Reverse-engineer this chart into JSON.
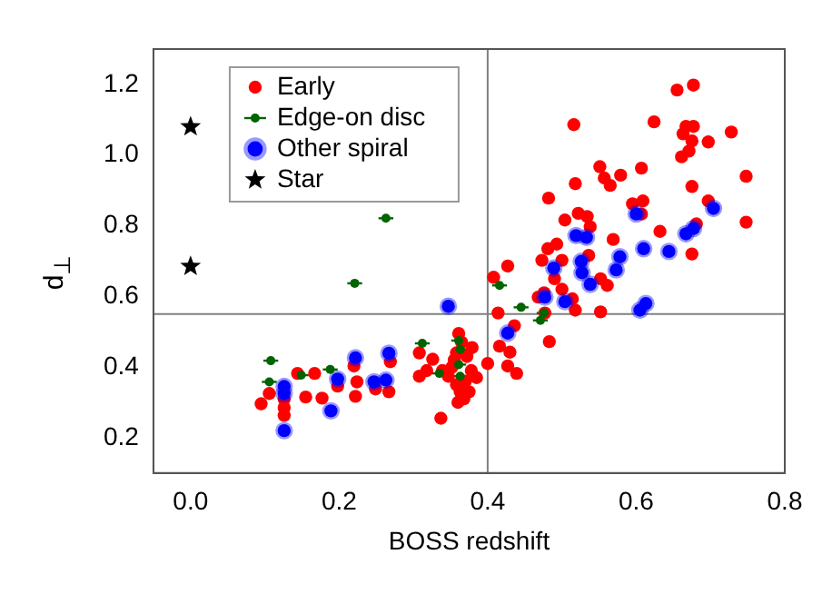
{
  "chart_data": {
    "type": "scatter",
    "xlabel": "BOSS redshift",
    "ylabel": "d$_{⊥}$",
    "xlim": [
      -0.05,
      0.8
    ],
    "ylim": [
      0.1,
      1.3
    ],
    "xticks": [
      {
        "value": 0,
        "label": "0.0"
      },
      0.2,
      0.4,
      0.6,
      0.8
    ],
    "yticks": [
      0.2,
      0.4,
      0.6,
      0.8,
      {
        "value": 1,
        "label": "1.0"
      },
      1.2
    ],
    "legend": "top left",
    "grid": false,
    "ref_lines": [
      {
        "axis": "x",
        "value": 0.4,
        "color": "#808080"
      },
      {
        "axis": "y",
        "value": 0.55,
        "color": "#808080"
      }
    ],
    "series": [
      {
        "name": "Early",
        "color": "#ff0000",
        "marker": "circle",
        "x": [
          0.095,
          0.106,
          0.126,
          0.126,
          0.126,
          0.144,
          0.155,
          0.167,
          0.177,
          0.198,
          0.22,
          0.224,
          0.222,
          0.249,
          0.267,
          0.269,
          0.308,
          0.308,
          0.318,
          0.326,
          0.337,
          0.339,
          0.347,
          0.355,
          0.36,
          0.363,
          0.37,
          0.352,
          0.358,
          0.365,
          0.372,
          0.378,
          0.385,
          0.358,
          0.368,
          0.375,
          0.361,
          0.379,
          0.4,
          0.408,
          0.427,
          0.414,
          0.416,
          0.43,
          0.427,
          0.439,
          0.436,
          0.483,
          0.473,
          0.481,
          0.476,
          0.468,
          0.482,
          0.493,
          0.5,
          0.504,
          0.518,
          0.516,
          0.522,
          0.534,
          0.538,
          0.536,
          0.551,
          0.557,
          0.565,
          0.579,
          0.569,
          0.561,
          0.552,
          0.552,
          0.518,
          0.514,
          0.607,
          0.609,
          0.595,
          0.624,
          0.632,
          0.655,
          0.677,
          0.667,
          0.677,
          0.663,
          0.675,
          0.661,
          0.671,
          0.697,
          0.728,
          0.748,
          0.748,
          0.697,
          0.675,
          0.681,
          0.675,
          0.607,
          0.477,
          0.49,
          0.5
        ],
        "values": [
          0.296,
          0.325,
          0.309,
          0.285,
          0.263,
          0.382,
          0.315,
          0.382,
          0.312,
          0.346,
          0.403,
          0.358,
          0.317,
          0.338,
          0.33,
          0.415,
          0.44,
          0.374,
          0.39,
          0.422,
          0.255,
          0.39,
          0.374,
          0.42,
          0.3,
          0.33,
          0.36,
          0.4,
          0.44,
          0.47,
          0.43,
          0.39,
          0.37,
          0.35,
          0.31,
          0.33,
          0.495,
          0.455,
          0.41,
          0.654,
          0.686,
          0.553,
          0.459,
          0.442,
          0.403,
          0.382,
          0.517,
          0.472,
          0.702,
          0.735,
          0.61,
          0.598,
          0.878,
          0.748,
          0.702,
          0.816,
          0.919,
          1.086,
          0.835,
          0.826,
          0.797,
          0.716,
          0.967,
          0.935,
          0.914,
          0.943,
          0.761,
          0.631,
          0.556,
          0.65,
          0.561,
          0.593,
          0.963,
          0.87,
          0.862,
          1.094,
          0.784,
          1.184,
          1.198,
          1.081,
          1.081,
          1.06,
          1.04,
          0.995,
          1.011,
          1.037,
          1.065,
          0.94,
          0.81,
          0.87,
          0.911,
          0.805,
          0.72,
          0.833,
          0.553,
          0.65,
          0.62
        ]
      },
      {
        "name": "Edge-on disc",
        "color": "#006400",
        "marker": "circle",
        "x": [
          0.108,
          0.106,
          0.149,
          0.188,
          0.221,
          0.263,
          0.312,
          0.335,
          0.361,
          0.363,
          0.361,
          0.363,
          0.416,
          0.445,
          0.471,
          0.476
        ],
        "values": [
          0.418,
          0.358,
          0.377,
          0.393,
          0.637,
          0.821,
          0.467,
          0.382,
          0.475,
          0.45,
          0.407,
          0.374,
          0.631,
          0.569,
          0.532,
          0.553
        ],
        "xerrors": [
          0.01,
          0.01,
          0.01,
          0.01,
          0.01,
          0.01,
          0.01,
          0.01,
          0.01,
          0.01,
          0.01,
          0.01,
          0.01,
          0.01,
          0.01,
          0.01
        ]
      },
      {
        "name": "Other spiral",
        "color": "#0000ff",
        "marker": "circle",
        "x": [
          0.126,
          0.126,
          0.126,
          0.189,
          0.198,
          0.222,
          0.247,
          0.263,
          0.267,
          0.347,
          0.427,
          0.477,
          0.489,
          0.504,
          0.519,
          0.533,
          0.526,
          0.527,
          0.538,
          0.573,
          0.578,
          0.6,
          0.61,
          0.605,
          0.613,
          0.644,
          0.667,
          0.677,
          0.704
        ],
        "values": [
          0.345,
          0.325,
          0.22,
          0.276,
          0.366,
          0.426,
          0.358,
          0.363,
          0.439,
          0.572,
          0.496,
          0.598,
          0.68,
          0.585,
          0.772,
          0.767,
          0.699,
          0.667,
          0.634,
          0.675,
          0.712,
          0.833,
          0.735,
          0.561,
          0.58,
          0.727,
          0.777,
          0.792,
          0.849
        ]
      },
      {
        "name": "Star",
        "color": "#000000",
        "marker": "star",
        "x": [
          0,
          0
        ],
        "values": [
          1.08,
          0.685
        ]
      }
    ]
  }
}
